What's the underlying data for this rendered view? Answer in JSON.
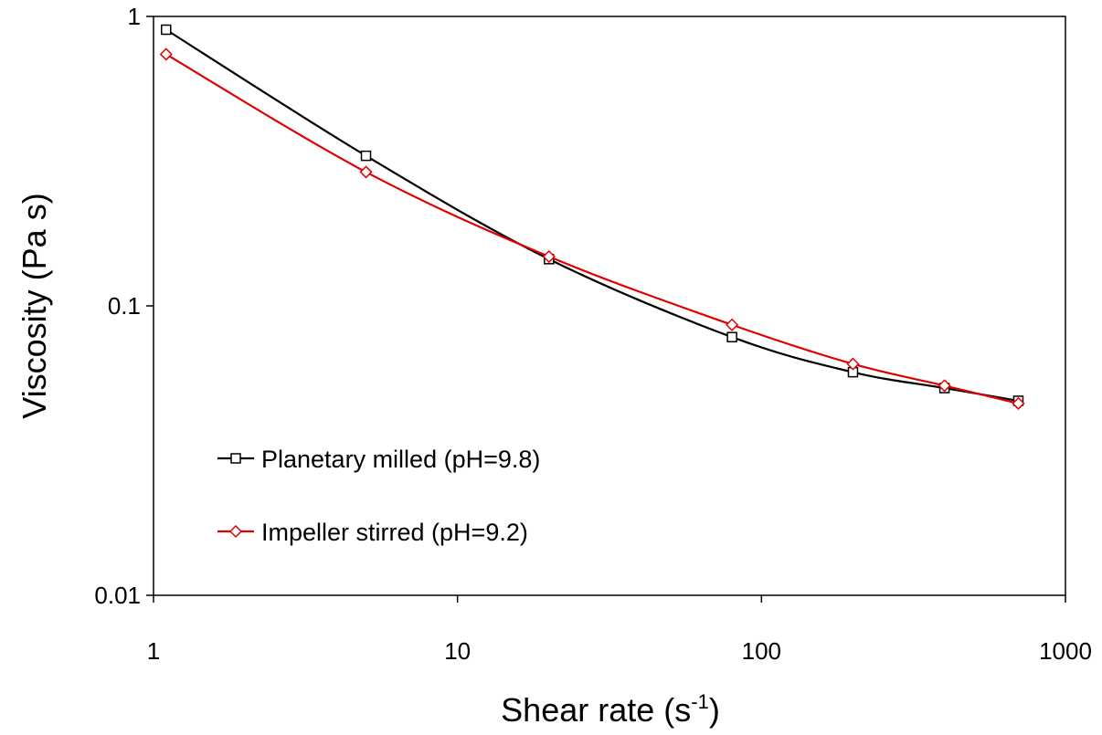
{
  "chart_data": {
    "type": "line",
    "xscale": "log",
    "yscale": "log",
    "xlim": [
      1,
      1000
    ],
    "ylim": [
      0.01,
      1
    ],
    "x_ticks": [
      "1",
      "10",
      "100",
      "1000"
    ],
    "y_ticks": [
      "0.01",
      "0.1",
      "1"
    ],
    "xlabel": "Shear rate (s",
    "xlabel_superscript": "-1",
    "xlabel_suffix": ")",
    "ylabel": "Viscosity (Pa s)",
    "grid": false,
    "legend_position": "lower-left",
    "series": [
      {
        "name": "Planetary milled (pH=9.8)",
        "color": "#000000",
        "marker": "square",
        "x": [
          1.1,
          5,
          20,
          80,
          200,
          400,
          700
        ],
        "y": [
          0.9,
          0.33,
          0.145,
          0.078,
          0.059,
          0.052,
          0.047
        ]
      },
      {
        "name": "Impeller stirred (pH=9.2)",
        "color": "#e00000",
        "marker": "diamond",
        "x": [
          1.1,
          5,
          20,
          80,
          200,
          400,
          700
        ],
        "y": [
          0.74,
          0.29,
          0.148,
          0.086,
          0.063,
          0.053,
          0.046
        ]
      }
    ]
  }
}
